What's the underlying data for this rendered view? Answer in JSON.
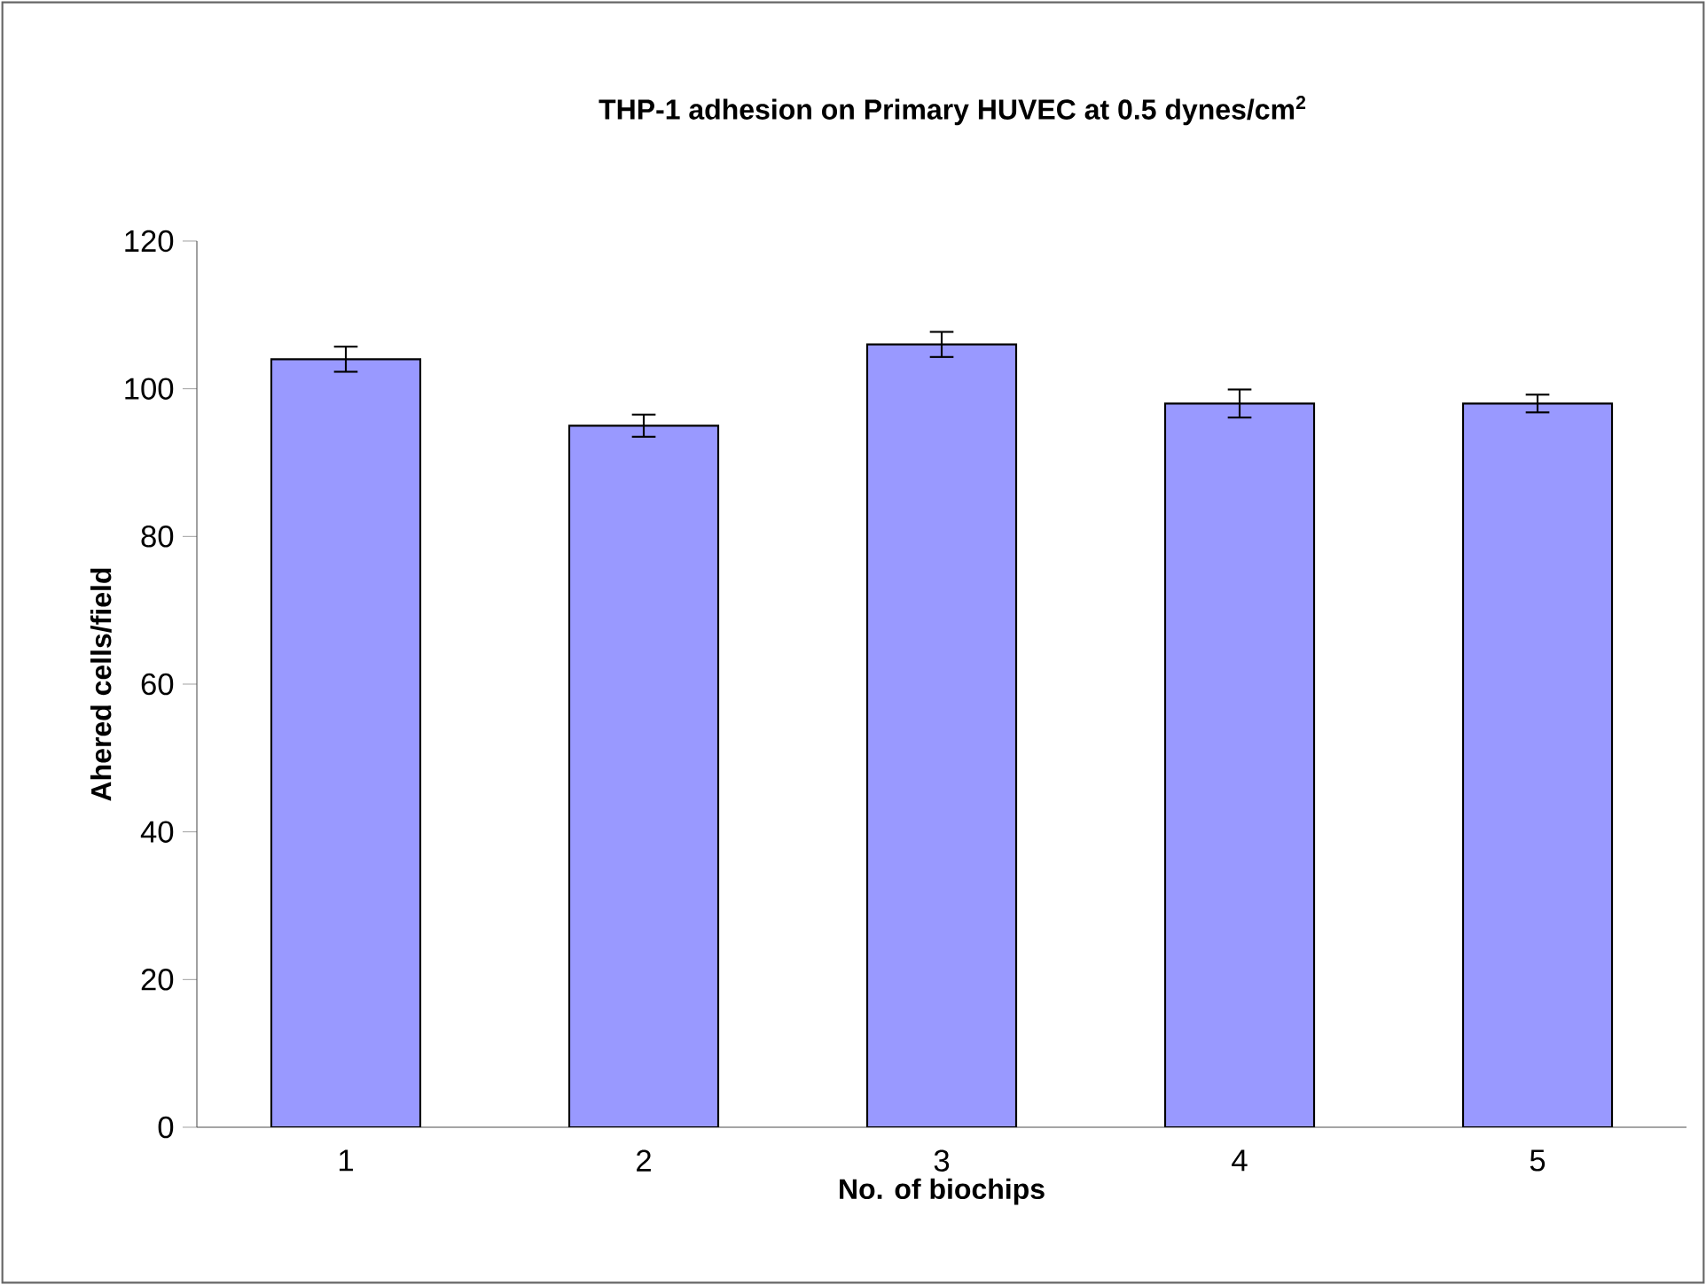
{
  "chart_data": {
    "type": "bar",
    "title": "THP-1 adhesion on Primary HUVEC at 0.5 dynes/cm$^{2}$",
    "xlabel": "No. of biochips",
    "ylabel": "Ahered cells/field",
    "categories": [
      "1",
      "2",
      "3",
      "4",
      "5"
    ],
    "values": [
      104,
      95,
      106,
      98,
      98
    ],
    "errors": [
      1.7,
      1.5,
      1.7,
      1.9,
      1.2
    ],
    "color": "#9999ff",
    "ylim": [
      0,
      120
    ],
    "yticks": [
      0,
      20,
      40,
      60,
      80,
      100,
      120
    ],
    "grid": false
  }
}
